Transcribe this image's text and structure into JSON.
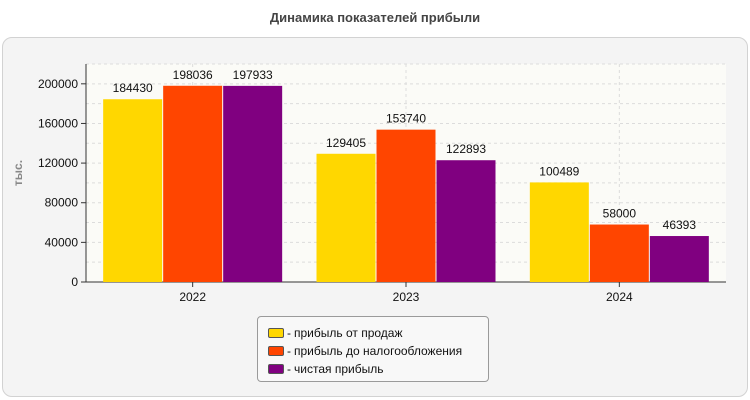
{
  "chart_data": {
    "type": "bar",
    "title": "Динамика показателей прибыли",
    "ylabel": "тыс.",
    "xlabel": "",
    "categories": [
      "2022",
      "2023",
      "2024"
    ],
    "series": [
      {
        "name": "прибыль от продаж",
        "color": "#ffd700",
        "values": [
          184430,
          129405,
          100489
        ]
      },
      {
        "name": "прибыль до налогообложения",
        "color": "#ff4500",
        "values": [
          198036,
          153740,
          58000
        ]
      },
      {
        "name": "чистая прибыль",
        "color": "#800080",
        "values": [
          197933,
          122893,
          46393
        ]
      }
    ],
    "ylim": [
      0,
      220000
    ],
    "yticks": [
      0,
      40000,
      80000,
      120000,
      160000,
      200000
    ],
    "grid": true,
    "legend_position": "bottom-center",
    "legend_separator": "-"
  }
}
